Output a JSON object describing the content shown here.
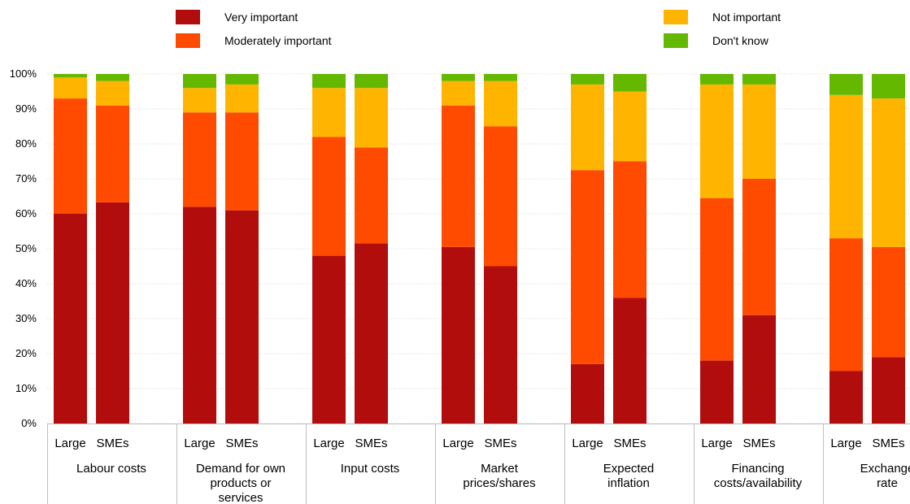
{
  "chart_data": {
    "type": "bar",
    "stacked": true,
    "y_unit": "%",
    "ylim": [
      0,
      100
    ],
    "y_ticks": [
      "0%",
      "10%",
      "20%",
      "30%",
      "40%",
      "50%",
      "60%",
      "70%",
      "80%",
      "90%",
      "100%"
    ],
    "grid": true,
    "legend_position": "top",
    "series": [
      {
        "name": "Very important",
        "color": "#b20d0d"
      },
      {
        "name": "Moderately important",
        "color": "#ff4b00"
      },
      {
        "name": "Not important",
        "color": "#ffb400"
      },
      {
        "name": "Don't know",
        "color": "#65b800"
      }
    ],
    "groups": [
      {
        "label_lines": [
          "Labour costs"
        ],
        "bars": [
          {
            "label": "Large",
            "values": [
              60,
              33,
              6,
              1
            ]
          },
          {
            "label": "SMEs",
            "values": [
              63.3,
              27.7,
              7,
              2
            ]
          }
        ]
      },
      {
        "label_lines": [
          "Demand for own",
          "products or",
          "services"
        ],
        "bars": [
          {
            "label": "Large",
            "values": [
              62,
              27,
              7,
              4
            ]
          },
          {
            "label": "SMEs",
            "values": [
              61,
              28,
              8,
              3
            ]
          }
        ]
      },
      {
        "label_lines": [
          "Input costs"
        ],
        "bars": [
          {
            "label": "Large",
            "values": [
              48,
              34,
              14,
              4
            ]
          },
          {
            "label": "SMEs",
            "values": [
              51.5,
              27.5,
              17,
              4
            ]
          }
        ]
      },
      {
        "label_lines": [
          "Market",
          "prices/shares"
        ],
        "bars": [
          {
            "label": "Large",
            "values": [
              50.5,
              40.5,
              7,
              2
            ]
          },
          {
            "label": "SMEs",
            "values": [
              45,
              40,
              13,
              2
            ]
          }
        ]
      },
      {
        "label_lines": [
          "Expected",
          "inflation"
        ],
        "bars": [
          {
            "label": "Large",
            "values": [
              17,
              55.5,
              24.5,
              3
            ]
          },
          {
            "label": "SMEs",
            "values": [
              36,
              39,
              20,
              5
            ]
          }
        ]
      },
      {
        "label_lines": [
          "Financing",
          "costs/availability"
        ],
        "bars": [
          {
            "label": "Large",
            "values": [
              18,
              46.5,
              32.5,
              3
            ]
          },
          {
            "label": "SMEs",
            "values": [
              31,
              39,
              27,
              3
            ]
          }
        ]
      },
      {
        "label_lines": [
          "Exchange",
          "rate"
        ],
        "bars": [
          {
            "label": "Large",
            "values": [
              15,
              38,
              41,
              6
            ]
          },
          {
            "label": "SMEs",
            "values": [
              19,
              31.5,
              42.5,
              7
            ]
          }
        ]
      }
    ]
  }
}
